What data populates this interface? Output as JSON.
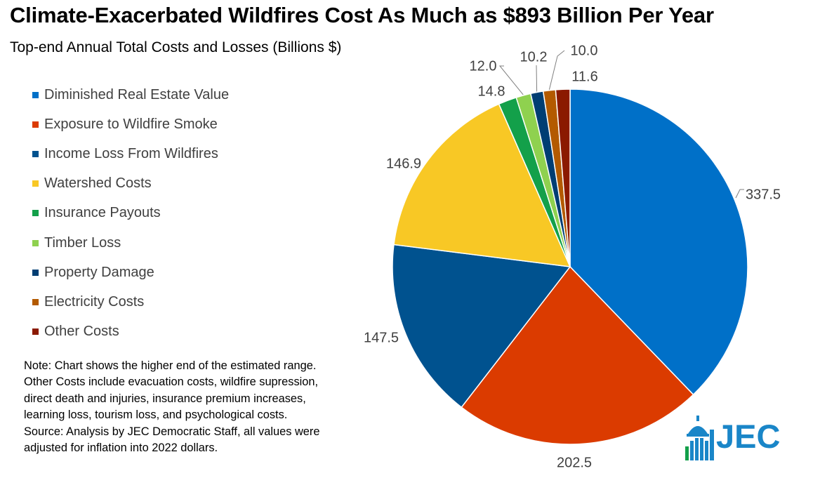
{
  "title": "Climate-Exacerbated Wildfires Cost As Much as $893 Billion Per Year",
  "subtitle": "Top-end Annual Total Costs and Losses (Billions $)",
  "note_lines": [
    "Note: Chart shows the higher end of the estimated range.",
    "Other Costs include evacuation costs, wildfire supression,",
    "direct death and injuries, insurance premium increases,",
    "learning loss, tourism loss, and psychological costs.",
    "Source: Analysis by JEC Democratic Staff, all values were",
    "adjusted for inflation into 2022 dollars."
  ],
  "logo_text": "JEC",
  "colors": {
    "logo_blue": "#1a86c8",
    "label_text": "#404040",
    "leader_line": "#7f7f7f"
  },
  "chart_data": {
    "type": "pie",
    "title": "Climate-Exacerbated Wildfires Cost As Much as $893 Billion Per Year",
    "subtitle": "Top-end Annual Total Costs and Losses (Billions $)",
    "unit": "Billions $",
    "legend_position": "left",
    "slices": [
      {
        "name": "Diminished Real Estate Value",
        "value": 337.5,
        "label": "337.5",
        "color": "#0070c8"
      },
      {
        "name": "Exposure to Wildfire Smoke",
        "value": 202.5,
        "label": "202.5",
        "color": "#db3b00"
      },
      {
        "name": "Income Loss From Wildfires",
        "value": 147.5,
        "label": "147.5",
        "color": "#00528f"
      },
      {
        "name": "Watershed Costs",
        "value": 146.9,
        "label": "146.9",
        "color": "#f8c825"
      },
      {
        "name": "Insurance Payouts",
        "value": 14.8,
        "label": "14.8",
        "color": "#13a04a"
      },
      {
        "name": "Timber Loss",
        "value": 12.0,
        "label": "12.0",
        "color": "#8fd14f"
      },
      {
        "name": "Property Damage",
        "value": 10.2,
        "label": "10.2",
        "color": "#003e73"
      },
      {
        "name": "Electricity Costs",
        "value": 10.0,
        "label": "10.0",
        "color": "#b35a00"
      },
      {
        "name": "Other Costs",
        "value": 11.6,
        "label": "11.6",
        "color": "#8b1a00"
      }
    ]
  }
}
